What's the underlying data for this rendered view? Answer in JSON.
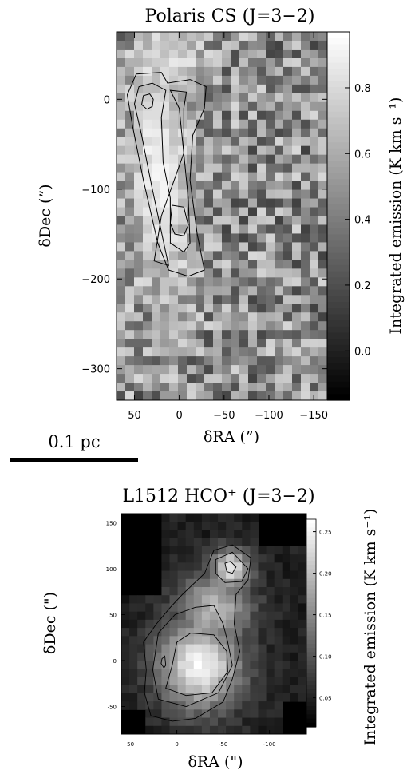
{
  "chart_data": [
    {
      "type": "heatmap",
      "title": "Polaris CS (J=3−2)",
      "xlabel": "δRA (”)",
      "ylabel": "δDec (”)",
      "colorbar_label": "Integrated emission (K km s⁻¹)",
      "xlim": [
        70,
        -165
      ],
      "ylim": [
        -335,
        75
      ],
      "x_ticks": [
        50,
        0,
        -50,
        -100,
        -150
      ],
      "x_tick_labels": [
        "50",
        "0",
        "−50",
        "−100",
        "−150"
      ],
      "y_ticks": [
        0,
        -100,
        -200,
        -300
      ],
      "y_tick_labels": [
        "0",
        "−100",
        "−200",
        "−300"
      ],
      "colorbar_range": [
        -0.15,
        0.97
      ],
      "colorbar_ticks": [
        0.8,
        0.6,
        0.4,
        0.2,
        0.0
      ],
      "colorbar_tick_labels": [
        "0.8",
        "0.6",
        "0.4",
        "0.2",
        "0.0"
      ],
      "colormap": "grayscale",
      "contours": [
        {
          "name": "outer",
          "points": [
            [
              48,
              28
            ],
            [
              20,
              30
            ],
            [
              13,
              18
            ],
            [
              -12,
              22
            ],
            [
              -30,
              14
            ],
            [
              -28,
              -10
            ],
            [
              -15,
              -40
            ],
            [
              -12,
              -90
            ],
            [
              -20,
              -150
            ],
            [
              -28,
              -190
            ],
            [
              -10,
              -197
            ],
            [
              12,
              -190
            ],
            [
              24,
              -160
            ],
            [
              40,
              -90
            ],
            [
              52,
              -30
            ],
            [
              58,
              5
            ],
            [
              48,
              28
            ]
          ]
        },
        {
          "name": "middle",
          "points": [
            [
              45,
              14
            ],
            [
              30,
              18
            ],
            [
              15,
              10
            ],
            [
              20,
              -20
            ],
            [
              18,
              -70
            ],
            [
              10,
              -110
            ],
            [
              10,
              -160
            ],
            [
              -5,
              -170
            ],
            [
              -12,
              -160
            ],
            [
              -10,
              -110
            ],
            [
              -5,
              -60
            ],
            [
              0,
              -10
            ],
            [
              10,
              10
            ],
            [
              -8,
              8
            ],
            [
              -5,
              -10
            ],
            [
              -5,
              -60
            ],
            [
              20,
              -130
            ],
            [
              28,
              -180
            ],
            [
              12,
              -185
            ],
            [
              30,
              -100
            ],
            [
              42,
              -40
            ],
            [
              50,
              -5
            ],
            [
              45,
              14
            ]
          ]
        },
        {
          "name": "peak-north",
          "points": [
            [
              40,
              4
            ],
            [
              33,
              6
            ],
            [
              29,
              0
            ],
            [
              30,
              -8
            ],
            [
              36,
              -11
            ],
            [
              42,
              -6
            ],
            [
              40,
              4
            ]
          ]
        },
        {
          "name": "peak-south",
          "points": [
            [
              8,
              -118
            ],
            [
              -5,
              -120
            ],
            [
              -10,
              -140
            ],
            [
              -5,
              -152
            ],
            [
              5,
              -150
            ],
            [
              10,
              -138
            ],
            [
              8,
              -118
            ]
          ]
        }
      ]
    },
    {
      "type": "heatmap",
      "title": "L1512 HCO⁺ (J=3−2)",
      "xlabel": "δRA (\")",
      "ylabel": "δDec (\")",
      "colorbar_label": "Integrated emission (K km s⁻¹)",
      "xlim": [
        60,
        -140
      ],
      "ylim": [
        -80,
        160
      ],
      "x_ticks": [
        50,
        0,
        -50,
        -100
      ],
      "x_tick_labels": [
        "50",
        "0",
        "-50",
        "-100"
      ],
      "y_ticks": [
        150,
        100,
        50,
        0,
        -50
      ],
      "y_tick_labels": [
        "150",
        "100",
        "50",
        "0",
        "-50"
      ],
      "colorbar_range": [
        0.015,
        0.265
      ],
      "colorbar_ticks": [
        0.25,
        0.2,
        0.15,
        0.1,
        0.05
      ],
      "colorbar_tick_labels": [
        "0.25",
        "0.20",
        "0.15",
        "0.10",
        "0.05"
      ],
      "colormap": "grayscale",
      "contours": [
        {
          "name": "outer",
          "points": [
            [
              28,
              -60
            ],
            [
              35,
              -35
            ],
            [
              33,
              -10
            ],
            [
              36,
              20
            ],
            [
              22,
              40
            ],
            [
              7,
              58
            ],
            [
              -6,
              72
            ],
            [
              -30,
              95
            ],
            [
              -40,
              120
            ],
            [
              -60,
              126
            ],
            [
              -80,
              112
            ],
            [
              -77,
              88
            ],
            [
              -64,
              72
            ],
            [
              -62,
              40
            ],
            [
              -68,
              10
            ],
            [
              -60,
              -20
            ],
            [
              -50,
              -45
            ],
            [
              -20,
              -63
            ],
            [
              5,
              -66
            ],
            [
              28,
              -60
            ]
          ]
        },
        {
          "name": "mid-south",
          "points": [
            [
              20,
              -42
            ],
            [
              26,
              -10
            ],
            [
              20,
              30
            ],
            [
              2,
              50
            ],
            [
              -20,
              58
            ],
            [
              -40,
              60
            ],
            [
              -50,
              40
            ],
            [
              -55,
              20
            ],
            [
              -60,
              -5
            ],
            [
              -45,
              -35
            ],
            [
              -10,
              -50
            ],
            [
              20,
              -42
            ]
          ]
        },
        {
          "name": "mid-north",
          "points": [
            [
              -42,
              110
            ],
            [
              -60,
              118
            ],
            [
              -77,
              100
            ],
            [
              -70,
              86
            ],
            [
              -52,
              85
            ],
            [
              -42,
              95
            ],
            [
              -42,
              110
            ]
          ]
        },
        {
          "name": "core",
          "points": [
            [
              12,
              -30
            ],
            [
              5,
              -5
            ],
            [
              0,
              20
            ],
            [
              -15,
              30
            ],
            [
              -40,
              28
            ],
            [
              -54,
              10
            ],
            [
              -55,
              -12
            ],
            [
              -38,
              -35
            ],
            [
              -10,
              -38
            ],
            [
              12,
              -30
            ]
          ]
        },
        {
          "name": "peak-north",
          "points": [
            [
              -52,
              106
            ],
            [
              -58,
              108
            ],
            [
              -64,
              102
            ],
            [
              -60,
              95
            ],
            [
              -54,
              97
            ],
            [
              -52,
              106
            ]
          ]
        },
        {
          "name": "peak-west",
          "points": [
            [
              16,
              2
            ],
            [
              13,
              5
            ],
            [
              12,
              -5
            ],
            [
              14,
              -8
            ],
            [
              17,
              -3
            ],
            [
              16,
              2
            ]
          ]
        }
      ]
    }
  ],
  "scalebar": {
    "label": "0.1 pc"
  }
}
